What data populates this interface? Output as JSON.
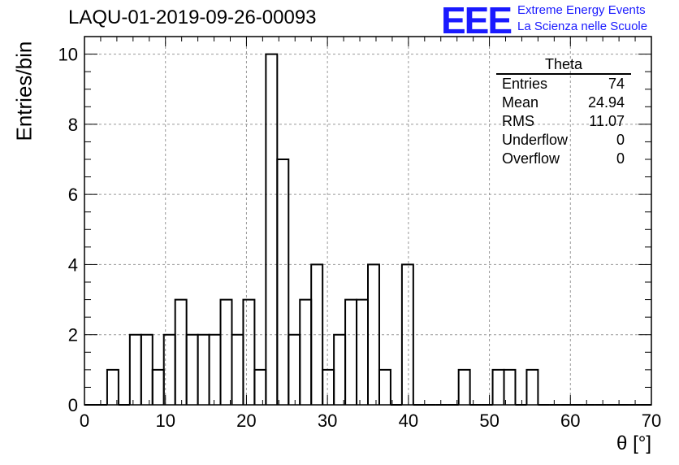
{
  "header": {
    "title": "LAQU-01-2019-09-26-00093",
    "logo_text": "EEE",
    "logo_line1": "Extreme Energy Events",
    "logo_line2": "La Scienza nelle Scuole"
  },
  "stats_box": {
    "title": "Theta",
    "rows": [
      {
        "label": "Entries",
        "value": "74"
      },
      {
        "label": "Mean",
        "value": "24.94"
      },
      {
        "label": "RMS",
        "value": "11.07"
      },
      {
        "label": "Underflow",
        "value": "0"
      },
      {
        "label": "Overflow",
        "value": "0"
      }
    ]
  },
  "chart_data": {
    "type": "histogram",
    "title": "LAQU-01-2019-09-26-00093",
    "xlabel": "θ [°]",
    "ylabel": "Entries/bin",
    "xlim": [
      0,
      70
    ],
    "ylim": [
      0,
      10.5
    ],
    "grid": true,
    "bin_width": 1.4,
    "bin_edges_start": 0,
    "counts": [
      0,
      0,
      1,
      0,
      2,
      2,
      1,
      2,
      3,
      2,
      2,
      2,
      3,
      2,
      3,
      1,
      10,
      7,
      2,
      3,
      4,
      1,
      2,
      3,
      3,
      4,
      1,
      0,
      4,
      0,
      0,
      0,
      0,
      1,
      0,
      0,
      1,
      1,
      0,
      1,
      0,
      0,
      0,
      0,
      0,
      0,
      0,
      0,
      0,
      0
    ],
    "x_ticks": [
      0,
      10,
      20,
      30,
      40,
      50,
      60,
      70
    ],
    "y_ticks": [
      0,
      2,
      4,
      6,
      8,
      10
    ]
  }
}
